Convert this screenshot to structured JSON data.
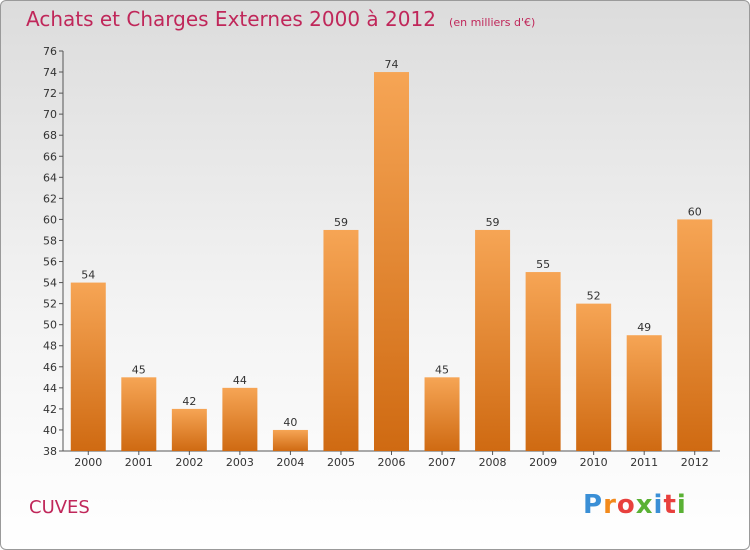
{
  "header": {
    "title": "Achats et Charges Externes 2000 à 2012",
    "unit": "(en milliers d'€)"
  },
  "footer": {
    "place": "CUVES",
    "logo": {
      "text": "Proxiti",
      "letter_colors": [
        "#3a8fd6",
        "#f28a1c",
        "#e8403d",
        "#5ab134",
        "#3a8fd6",
        "#e8403d",
        "#5ab134"
      ]
    }
  },
  "colors": {
    "accent": "#c0275a",
    "bar_top": "#f6a555",
    "bar_bottom": "#cf6a12"
  },
  "chart_data": {
    "type": "bar",
    "title": "Achats et Charges Externes 2000 à 2012",
    "subtitle": "(en milliers d'€)",
    "xlabel": "",
    "ylabel": "",
    "categories": [
      "2000",
      "2001",
      "2002",
      "2003",
      "2004",
      "2005",
      "2006",
      "2007",
      "2008",
      "2009",
      "2010",
      "2011",
      "2012"
    ],
    "values": [
      54,
      45,
      42,
      44,
      40,
      59,
      74,
      45,
      59,
      55,
      52,
      49,
      60
    ],
    "ylim": [
      38,
      76
    ],
    "ytick_step": 2,
    "grid": false,
    "data_labels": true
  }
}
